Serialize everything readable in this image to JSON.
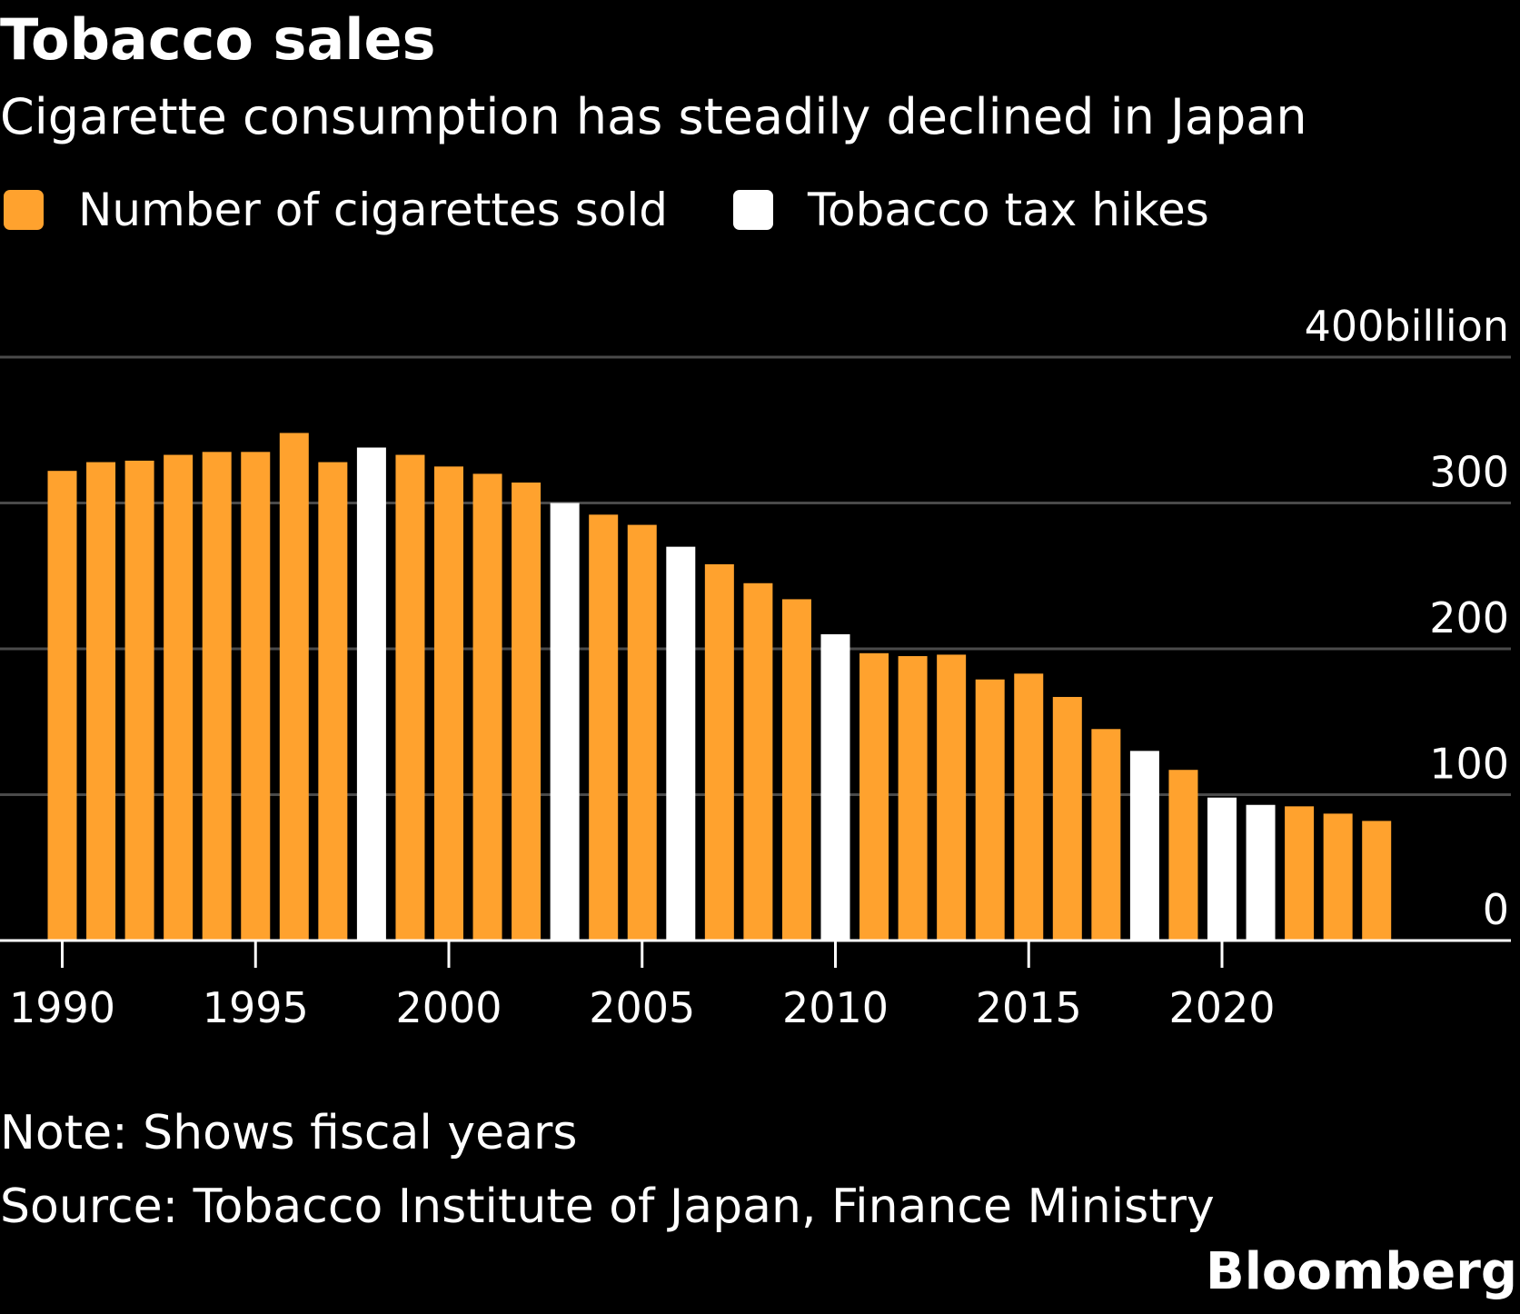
{
  "chart_data": {
    "type": "bar",
    "title": "Tobacco sales",
    "subtitle": "Cigarette consumption has steadily declined in Japan",
    "legend": [
      {
        "label": "Number of cigarettes sold",
        "color": "#ffa22e"
      },
      {
        "label": "Tobacco tax hikes",
        "color": "#ffffff"
      }
    ],
    "legend_placement": "top-left",
    "y_unit_label": "400billion",
    "y_ticks": [
      {
        "value": 0,
        "label": "0"
      },
      {
        "value": 100,
        "label": "100"
      },
      {
        "value": 200,
        "label": "200"
      },
      {
        "value": 300,
        "label": "300"
      },
      {
        "value": 400,
        "label": "400billion"
      }
    ],
    "ylim": [
      0,
      400
    ],
    "grid": true,
    "x_ticks": [
      {
        "value": 1990,
        "label": "1990"
      },
      {
        "value": 1995,
        "label": "1995"
      },
      {
        "value": 2000,
        "label": "2000"
      },
      {
        "value": 2005,
        "label": "2005"
      },
      {
        "value": 2010,
        "label": "2010"
      },
      {
        "value": 2015,
        "label": "2015"
      },
      {
        "value": 2020,
        "label": "2020"
      }
    ],
    "categories": [
      1990,
      1991,
      1992,
      1993,
      1994,
      1995,
      1996,
      1997,
      1998,
      1999,
      2000,
      2001,
      2002,
      2003,
      2004,
      2005,
      2006,
      2007,
      2008,
      2009,
      2010,
      2011,
      2012,
      2013,
      2014,
      2015,
      2016,
      2017,
      2018,
      2019,
      2020,
      2021,
      2022,
      2023,
      2024
    ],
    "values": [
      322,
      328,
      329,
      333,
      335,
      335,
      348,
      328,
      338,
      333,
      325,
      320,
      314,
      300,
      292,
      285,
      270,
      258,
      245,
      234,
      210,
      197,
      195,
      196,
      179,
      183,
      167,
      145,
      130,
      117,
      98,
      93,
      92,
      87,
      82
    ],
    "tax_hike": [
      false,
      false,
      false,
      false,
      false,
      false,
      false,
      false,
      true,
      false,
      false,
      false,
      false,
      true,
      false,
      false,
      true,
      false,
      false,
      false,
      true,
      false,
      false,
      false,
      false,
      false,
      false,
      false,
      true,
      false,
      true,
      true,
      false,
      false,
      false
    ],
    "colors": {
      "sold": "#ffa22e",
      "tax_hike": "#ffffff",
      "grid": "#4a4a4a",
      "axis": "#ffffff",
      "background": "#000000"
    }
  },
  "note": "Note: Shows fiscal years",
  "source": "Source: Tobacco Institute of Japan, Finance Ministry",
  "brand": "Bloomberg"
}
